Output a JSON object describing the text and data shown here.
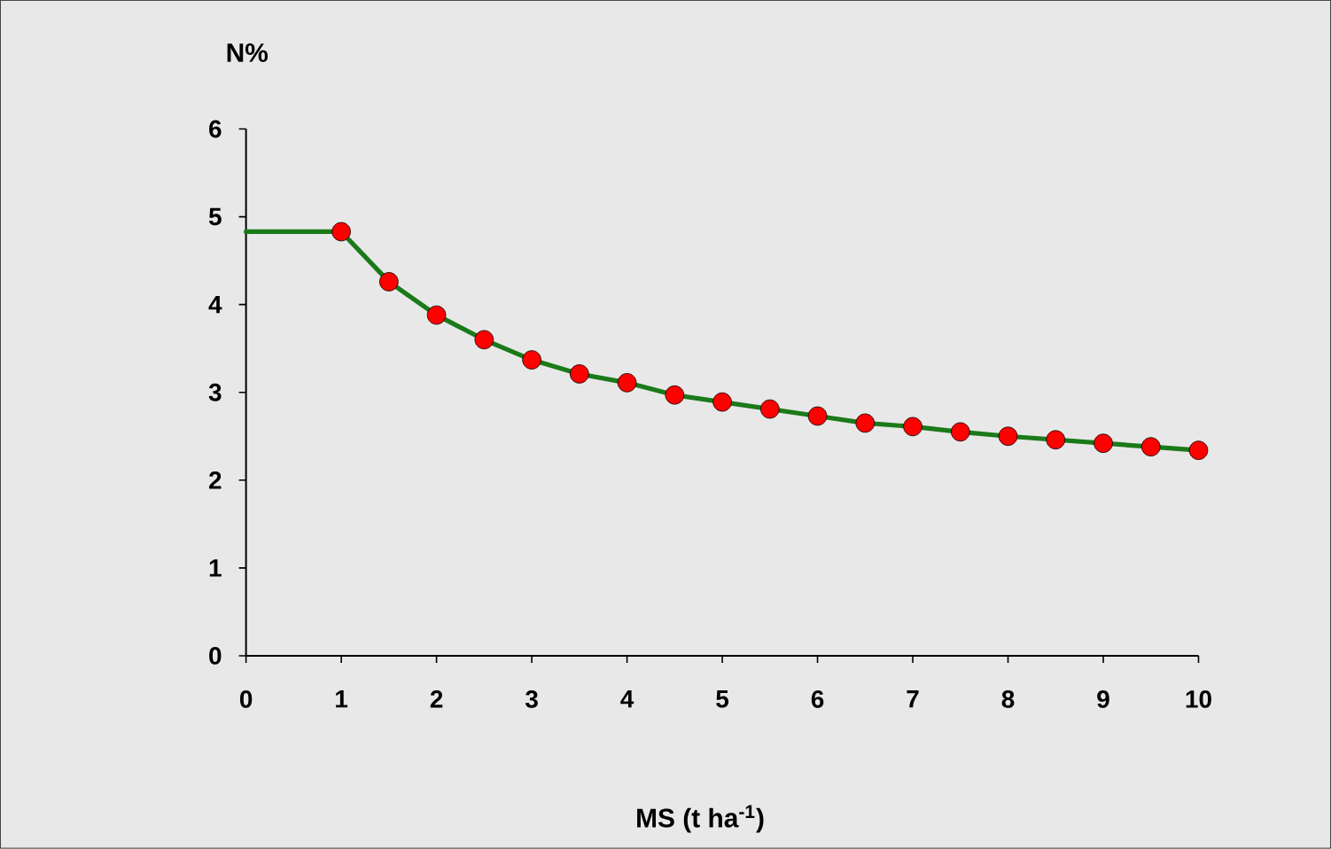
{
  "chart_data": {
    "type": "line",
    "xlabel": "MS (t ha$^{-1}$)",
    "ylabel": "N%",
    "xlim": [
      0,
      10
    ],
    "ylim": [
      0,
      6
    ],
    "xticks": [
      0,
      1,
      2,
      3,
      4,
      5,
      6,
      7,
      8,
      9,
      10
    ],
    "yticks": [
      0,
      1,
      2,
      3,
      4,
      5,
      6
    ],
    "series": [
      {
        "color": "#1a7a1a",
        "marker": "none",
        "line_style": "solid",
        "x": [
          0,
          1,
          1.5,
          2,
          2.5,
          3,
          3.5,
          4,
          4.5,
          5,
          5.5,
          6,
          6.5,
          7,
          7.5,
          8,
          8.5,
          9,
          9.5,
          10
        ],
        "values": [
          4.83,
          4.83,
          4.26,
          3.88,
          3.6,
          3.37,
          3.21,
          3.11,
          2.97,
          2.89,
          2.81,
          2.73,
          2.65,
          2.61,
          2.55,
          2.5,
          2.46,
          2.42,
          2.38,
          2.34
        ]
      },
      {
        "type": "scatter",
        "color": "#ff0000",
        "marker": "circle",
        "x": [
          1,
          1.5,
          2,
          2.5,
          3,
          3.5,
          4,
          4.5,
          5,
          5.5,
          6,
          6.5,
          7,
          7.5,
          8,
          8.5,
          9,
          9.5,
          10
        ],
        "values": [
          4.83,
          4.26,
          3.88,
          3.6,
          3.37,
          3.21,
          3.11,
          2.97,
          2.89,
          2.81,
          2.73,
          2.65,
          2.61,
          2.55,
          2.5,
          2.46,
          2.42,
          2.38,
          2.34
        ]
      }
    ]
  }
}
